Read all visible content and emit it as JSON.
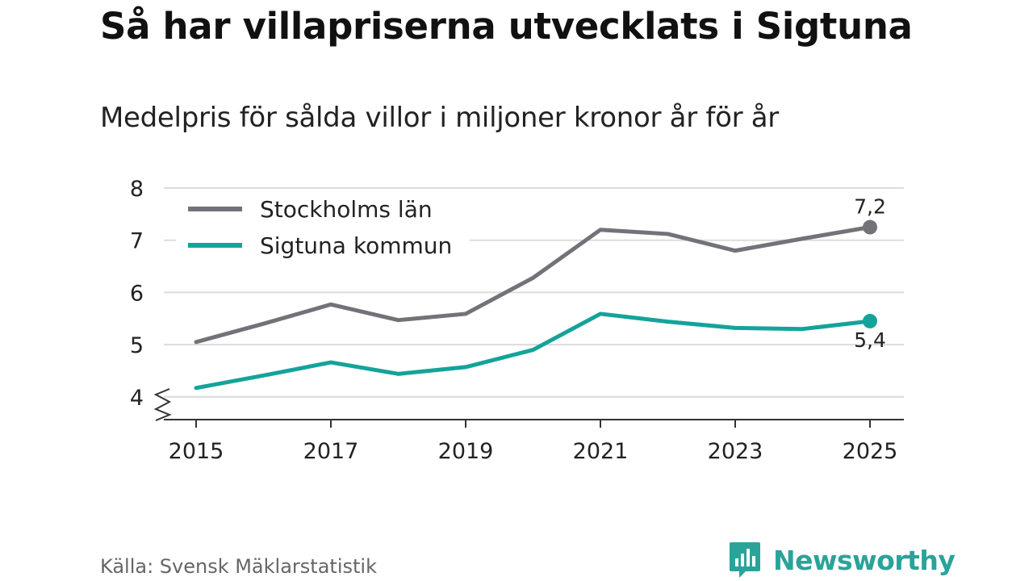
{
  "title": "Så har villapriserna utvecklats i Sigtuna",
  "subtitle": "Medelpris för sålda villor i miljoner kronor år för år",
  "source": "Källa: Svensk Mäklarstatistik",
  "brand": "Newsworthy",
  "colors": {
    "stockholm": "#727278",
    "sigtuna": "#14a39a",
    "grid": "#dcdcdc",
    "axis": "#333333",
    "brand": "#2aa39a"
  },
  "chart_data": {
    "type": "line",
    "title": "Så har villapriserna utvecklats i Sigtuna",
    "subtitle": "Medelpris för sålda villor i miljoner kronor år för år",
    "xlabel": "",
    "ylabel": "",
    "x": [
      2015,
      2016,
      2017,
      2018,
      2019,
      2020,
      2021,
      2022,
      2023,
      2024,
      2025
    ],
    "x_ticks": [
      "2015",
      "2017",
      "2019",
      "2021",
      "2023",
      "2025"
    ],
    "y_ticks": [
      "4",
      "5",
      "6",
      "7",
      "8"
    ],
    "ylim": [
      3.55,
      8
    ],
    "grid": true,
    "legend_position": "top-left",
    "series": [
      {
        "name": "Stockholms län",
        "key": "stockholm",
        "values": [
          5.05,
          5.4,
          5.77,
          5.47,
          5.59,
          6.28,
          7.2,
          7.12,
          6.8,
          7.03,
          7.25
        ],
        "end_label": "7,2"
      },
      {
        "name": "Sigtuna kommun",
        "key": "sigtuna",
        "values": [
          4.17,
          4.41,
          4.66,
          4.44,
          4.57,
          4.9,
          5.59,
          5.44,
          5.32,
          5.3,
          5.45
        ],
        "end_label": "5,4"
      }
    ]
  }
}
